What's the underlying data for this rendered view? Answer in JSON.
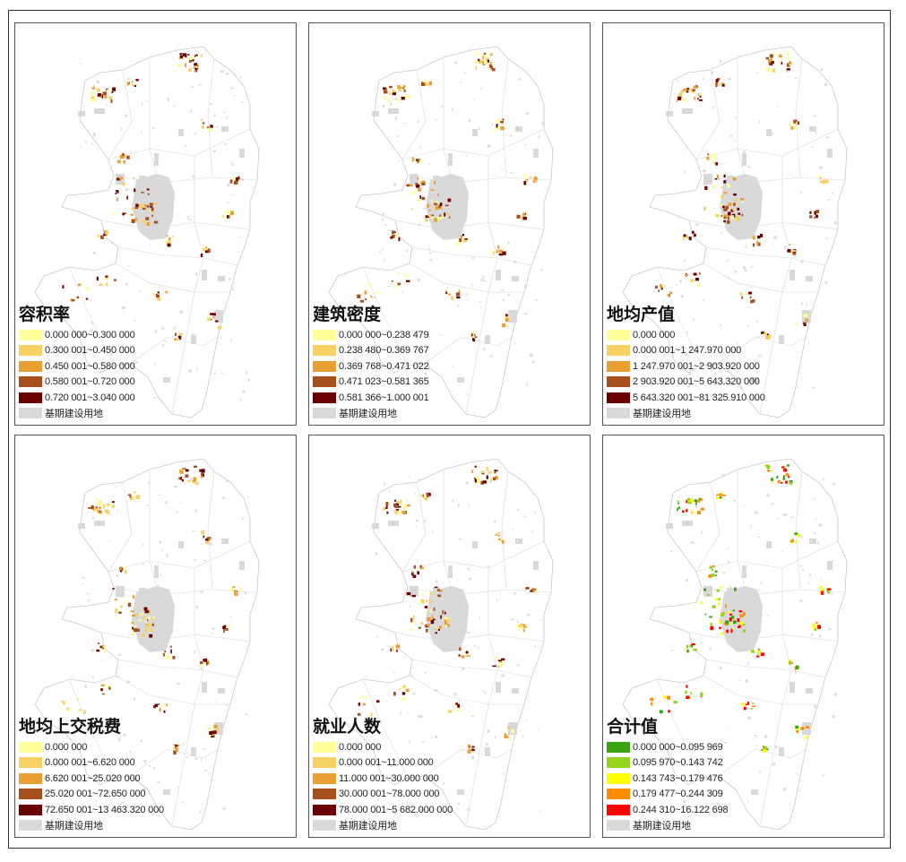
{
  "panels": [
    {
      "title": "容积率",
      "palette": "ylorbr",
      "legend": [
        {
          "label": "0.000 000~0.300 000",
          "color": "#ffff99"
        },
        {
          "label": "0.300 001~0.450 000",
          "color": "#f6d264"
        },
        {
          "label": "0.450 001~0.580 000",
          "color": "#e8a032"
        },
        {
          "label": "0.580 001~0.720 000",
          "color": "#a8501c"
        },
        {
          "label": "0.720 001~3.040 000",
          "color": "#6a0000"
        },
        {
          "label": "基期建设用地",
          "color": "#d9d9d9"
        }
      ]
    },
    {
      "title": "建筑密度",
      "palette": "ylorbr",
      "legend": [
        {
          "label": "0.000 000~0.238 479",
          "color": "#ffff99"
        },
        {
          "label": "0.238 480~0.369 767",
          "color": "#f6d264"
        },
        {
          "label": "0.369 768~0.471 022",
          "color": "#e8a032"
        },
        {
          "label": "0.471 023~0.581 365",
          "color": "#a8501c"
        },
        {
          "label": "0.581 366~1.000 001",
          "color": "#6a0000"
        },
        {
          "label": "基期建设用地",
          "color": "#d9d9d9"
        }
      ]
    },
    {
      "title": "地均产值",
      "palette": "ylorbr",
      "legend": [
        {
          "label": "0.000 000",
          "color": "#ffff99"
        },
        {
          "label": "0.000 001~1 247.970 000",
          "color": "#f6d264"
        },
        {
          "label": "1 247.970 001~2 903.920 000",
          "color": "#e8a032"
        },
        {
          "label": "2 903.920 001~5 643.320 000",
          "color": "#a8501c"
        },
        {
          "label": "5 643.320 001~81 325.910 000",
          "color": "#6a0000"
        },
        {
          "label": "基期建设用地",
          "color": "#d9d9d9"
        }
      ]
    },
    {
      "title": "地均上交税费",
      "palette": "ylorbr",
      "legend": [
        {
          "label": "0.000 000",
          "color": "#ffff99"
        },
        {
          "label": "0.000 001~6.620 000",
          "color": "#f6d264"
        },
        {
          "label": "6.620 001~25.020 000",
          "color": "#e8a032"
        },
        {
          "label": "25.020 001~72.650 000",
          "color": "#a8501c"
        },
        {
          "label": "72.650 001~13 463.320 000",
          "color": "#6a0000"
        },
        {
          "label": "基期建设用地",
          "color": "#d9d9d9"
        }
      ]
    },
    {
      "title": "就业人数",
      "palette": "ylorbr",
      "legend": [
        {
          "label": "0.000 000",
          "color": "#ffff99"
        },
        {
          "label": "0.000 001~11.000 000",
          "color": "#f6d264"
        },
        {
          "label": "11.000 001~30.000 000",
          "color": "#e8a032"
        },
        {
          "label": "30.000 001~78.000 000",
          "color": "#a8501c"
        },
        {
          "label": "78.000 001~5 682.000 000",
          "color": "#6a0000"
        },
        {
          "label": "基期建设用地",
          "color": "#d9d9d9"
        }
      ]
    },
    {
      "title": "合计值",
      "palette": "gnylrd",
      "legend": [
        {
          "label": "0.000 000~0.095 969",
          "color": "#3aa312"
        },
        {
          "label": "0.095 970~0.143 742",
          "color": "#96d21e"
        },
        {
          "label": "0.143 743~0.179 476",
          "color": "#ffff00"
        },
        {
          "label": "0.179 477~0.244 309",
          "color": "#ff8c00"
        },
        {
          "label": "0.244 310~16.122 698",
          "color": "#ff0000"
        },
        {
          "label": "基期建设用地",
          "color": "#d9d9d9"
        }
      ]
    }
  ]
}
